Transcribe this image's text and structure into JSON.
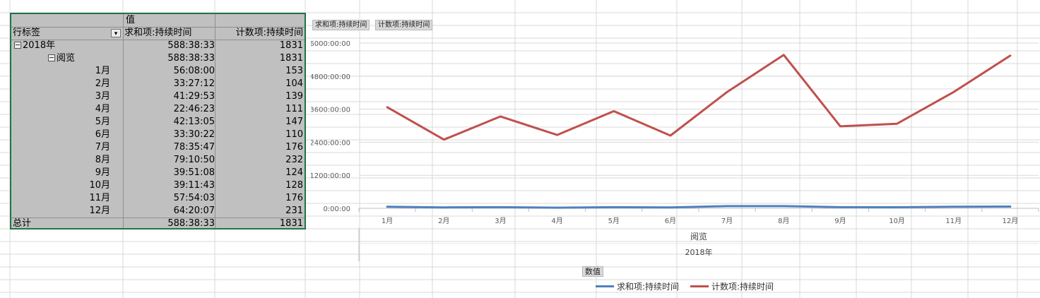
{
  "pivot": {
    "value_header": "值",
    "row_label_header": "行标签",
    "col_sum_header": "求和项:持续时间",
    "col_count_header": "计数项:持续时间",
    "year": {
      "label": "2018年",
      "sum": "588:38:33",
      "count": "1831"
    },
    "category": {
      "label": "阅览",
      "sum": "588:38:33",
      "count": "1831"
    },
    "months": [
      {
        "label": "1月",
        "sum": "56:08:00",
        "count": "153"
      },
      {
        "label": "2月",
        "sum": "33:27:12",
        "count": "104"
      },
      {
        "label": "3月",
        "sum": "41:29:53",
        "count": "139"
      },
      {
        "label": "4月",
        "sum": "22:46:23",
        "count": "111"
      },
      {
        "label": "5月",
        "sum": "42:13:05",
        "count": "147"
      },
      {
        "label": "6月",
        "sum": "33:30:22",
        "count": "110"
      },
      {
        "label": "7月",
        "sum": "78:35:47",
        "count": "176"
      },
      {
        "label": "8月",
        "sum": "79:10:50",
        "count": "232"
      },
      {
        "label": "9月",
        "sum": "39:51:08",
        "count": "124"
      },
      {
        "label": "10月",
        "sum": "39:11:43",
        "count": "128"
      },
      {
        "label": "11月",
        "sum": "57:54:03",
        "count": "176"
      },
      {
        "label": "12月",
        "sum": "64:20:07",
        "count": "231"
      }
    ],
    "total": {
      "label": "总计",
      "sum": "588:38:33",
      "count": "1831"
    }
  },
  "chart": {
    "field_buttons": [
      "求和项:持续时间",
      "计数项:持续时间"
    ],
    "values_button": "数值",
    "group_label": "阅览",
    "year_label": "2018年"
  },
  "chart_data": {
    "type": "line",
    "categories": [
      "1月",
      "2月",
      "3月",
      "4月",
      "5月",
      "6月",
      "7月",
      "8月",
      "9月",
      "10月",
      "11月",
      "12月"
    ],
    "ylim": [
      0,
      6000
    ],
    "y_ticks": [
      "0:00:00",
      "1200:00:00",
      "2400:00:00",
      "3600:00:00",
      "4800:00:00",
      "6000:00:00"
    ],
    "y_tick_values": [
      0,
      1200,
      2400,
      3600,
      4800,
      6000
    ],
    "grid": true,
    "legend_position": "bottom",
    "series": [
      {
        "name": "求和项:持续时间",
        "color": "#4f81bd",
        "values": [
          56.13,
          33.45,
          41.5,
          22.77,
          42.22,
          33.51,
          78.6,
          79.18,
          39.85,
          39.2,
          57.9,
          64.34
        ]
      },
      {
        "name": "计数项:持续时间",
        "color": "#c0504d",
        "values": [
          3672,
          2496,
          3336,
          2664,
          3528,
          2640,
          4224,
          5568,
          2976,
          3072,
          4224,
          5544
        ]
      }
    ]
  }
}
